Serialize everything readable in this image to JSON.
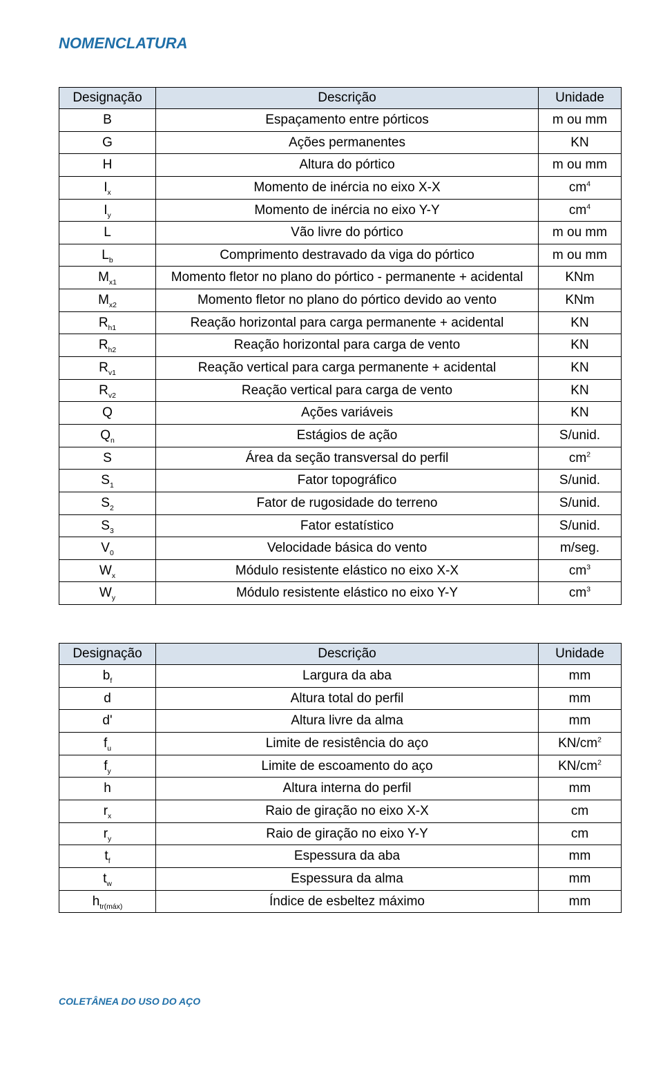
{
  "title_color": "#1f6fa8",
  "header_bg": "#d7e1ec",
  "footer_color": "#1f6fa8",
  "title": "NOMENCLATURA",
  "footer": "COLETÂNEA DO USO DO AÇO",
  "table1": {
    "headers": [
      "Designação",
      "Descrição",
      "Unidade"
    ],
    "rows": [
      {
        "sym": "B",
        "sub": "",
        "desc": "Espaçamento entre pórticos",
        "unit": "m ou mm",
        "usup": ""
      },
      {
        "sym": "G",
        "sub": "",
        "desc": "Ações permanentes",
        "unit": "KN",
        "usup": ""
      },
      {
        "sym": "H",
        "sub": "",
        "desc": "Altura do pórtico",
        "unit": "m ou mm",
        "usup": ""
      },
      {
        "sym": "I",
        "sub": "x",
        "desc": "Momento de inércia no eixo X-X",
        "unit": "cm",
        "usup": "4"
      },
      {
        "sym": "I",
        "sub": "y",
        "desc": "Momento de inércia no eixo Y-Y",
        "unit": "cm",
        "usup": "4"
      },
      {
        "sym": "L",
        "sub": "",
        "desc": "Vão livre do pórtico",
        "unit": "m ou mm",
        "usup": ""
      },
      {
        "sym": "L",
        "sub": "b",
        "desc": "Comprimento destravado da viga do pórtico",
        "unit": "m ou mm",
        "usup": ""
      },
      {
        "sym": "M",
        "sub": "x1",
        "desc": "Momento fletor no plano do pórtico - permanente + acidental",
        "unit": "KNm",
        "usup": ""
      },
      {
        "sym": "M",
        "sub": "x2",
        "desc": "Momento fletor no plano do pórtico devido ao vento",
        "unit": "KNm",
        "usup": ""
      },
      {
        "sym": "R",
        "sub": "h1",
        "desc": "Reação horizontal para carga permanente + acidental",
        "unit": "KN",
        "usup": ""
      },
      {
        "sym": "R",
        "sub": "h2",
        "desc": "Reação horizontal para carga de vento",
        "unit": "KN",
        "usup": ""
      },
      {
        "sym": "R",
        "sub": "v1",
        "desc": "Reação vertical para carga permanente + acidental",
        "unit": "KN",
        "usup": ""
      },
      {
        "sym": "R",
        "sub": "v2",
        "desc": "Reação vertical para carga de vento",
        "unit": "KN",
        "usup": ""
      },
      {
        "sym": "Q",
        "sub": "",
        "desc": "Ações variáveis",
        "unit": "KN",
        "usup": ""
      },
      {
        "sym": "Q",
        "sub": "n",
        "desc": "Estágios de ação",
        "unit": "S/unid.",
        "usup": ""
      },
      {
        "sym": "S",
        "sub": "",
        "desc": "Área da seção transversal do perfil",
        "unit": "cm",
        "usup": "2"
      },
      {
        "sym": "S",
        "sub": "1",
        "desc": "Fator topográfico",
        "unit": "S/unid.",
        "usup": ""
      },
      {
        "sym": "S",
        "sub": "2",
        "desc": "Fator de rugosidade do terreno",
        "unit": "S/unid.",
        "usup": ""
      },
      {
        "sym": "S",
        "sub": "3",
        "desc": "Fator estatístico",
        "unit": "S/unid.",
        "usup": ""
      },
      {
        "sym": "V",
        "sub": "0",
        "desc": "Velocidade básica do vento",
        "unit": "m/seg.",
        "usup": ""
      },
      {
        "sym": "W",
        "sub": "x",
        "desc": "Módulo resistente elástico no eixo X-X",
        "unit": "cm",
        "usup": "3"
      },
      {
        "sym": "W",
        "sub": "y",
        "desc": "Módulo resistente elástico no eixo Y-Y",
        "unit": "cm",
        "usup": "3"
      }
    ]
  },
  "table2": {
    "headers": [
      "Designação",
      "Descrição",
      "Unidade"
    ],
    "rows": [
      {
        "sym": "b",
        "sub": "f",
        "desc": "Largura da aba",
        "unit": "mm",
        "usup": ""
      },
      {
        "sym": "d",
        "sub": "",
        "desc": "Altura total do perfil",
        "unit": "mm",
        "usup": ""
      },
      {
        "sym": "d'",
        "sub": "",
        "desc": "Altura livre da alma",
        "unit": "mm",
        "usup": ""
      },
      {
        "sym": "f",
        "sub": "u",
        "desc": "Limite de resistência do aço",
        "unit": "KN/cm",
        "usup": "2"
      },
      {
        "sym": "f",
        "sub": "y",
        "desc": "Limite de escoamento do aço",
        "unit": "KN/cm",
        "usup": "2"
      },
      {
        "sym": "h",
        "sub": "",
        "desc": "Altura interna do perfil",
        "unit": "mm",
        "usup": ""
      },
      {
        "sym": "r",
        "sub": "x",
        "desc": "Raio de giração no eixo X-X",
        "unit": "cm",
        "usup": ""
      },
      {
        "sym": "r",
        "sub": "y",
        "desc": "Raio de giração no eixo Y-Y",
        "unit": "cm",
        "usup": ""
      },
      {
        "sym": "t",
        "sub": "f",
        "desc": "Espessura da aba",
        "unit": "mm",
        "usup": ""
      },
      {
        "sym": "t",
        "sub": "w",
        "desc": "Espessura da alma",
        "unit": "mm",
        "usup": ""
      },
      {
        "sym": "h",
        "sub": "tr(máx)",
        "desc": "Índice de esbeltez máximo",
        "unit": "mm",
        "usup": ""
      }
    ]
  }
}
